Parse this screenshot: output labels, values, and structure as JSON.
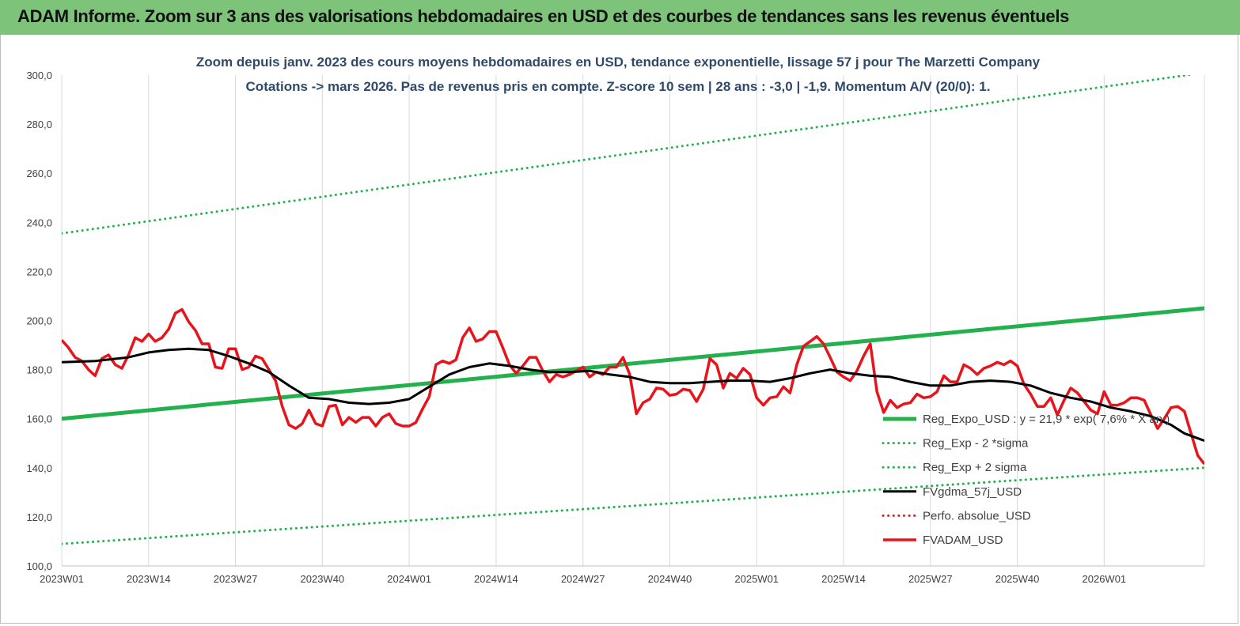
{
  "banner": {
    "title": "ADAM Informe. Zoom sur 3 ans des valorisations hebdomadaires en USD et des courbes de tendances sans les revenus éventuels"
  },
  "colors": {
    "banner_bg": "#7dc47a",
    "trend": "#22b14c",
    "bands": "#22b14c",
    "smooth": "#000000",
    "price": "#e8141b",
    "perf": "#e8141b",
    "grid": "#d9d9d9",
    "title_text": "#2e4a6b"
  },
  "chart_data": {
    "type": "line",
    "title": "Zoom depuis janv. 2023 des cours moyens hebdomadaires en USD, tendance exponentielle, lissage 57 j pour The Marzetti Company",
    "subtitle": "Cotations -> mars 2026. Pas de revenus pris en compte. Z-score 10 sem  | 28 ans : -3,0 | -1,9. Momentum A/V (20/0): 1.",
    "ylim": [
      100,
      300
    ],
    "y_ticks": [
      "300,0",
      "280,0",
      "260,0",
      "240,0",
      "220,0",
      "200,0",
      "180,0",
      "160,0",
      "140,0",
      "120,0",
      "100,0"
    ],
    "x_ticks": [
      "2023W01",
      "2023W14",
      "2023W27",
      "2023W40",
      "2024W01",
      "2024W14",
      "2024W27",
      "2024W40",
      "2025W01",
      "2025W14",
      "2025W27",
      "2025W40",
      "2026W01"
    ],
    "grid": "vertical",
    "legend_position": "right",
    "series": [
      {
        "name": "Reg_Expo_USD : y = 21,9 * exp( 7,6% * X an )",
        "style": "solid-thick",
        "color": "#22b14c",
        "x": [
          0,
          171
        ],
        "values": [
          160,
          205
        ]
      },
      {
        "name": "Reg_Exp - 2 *sigma",
        "style": "dotted",
        "color": "#22b14c",
        "x": [
          0,
          171
        ],
        "values": [
          109,
          140
        ]
      },
      {
        "name": "Reg_Exp + 2 sigma",
        "style": "dotted",
        "color": "#22b14c",
        "x": [
          0,
          171
        ],
        "values": [
          235.5,
          301
        ]
      },
      {
        "name": "FVgdma_57j_USD",
        "style": "solid",
        "color": "#000000",
        "x": [
          0,
          5,
          10,
          13,
          16,
          19,
          22,
          25,
          28,
          31,
          34,
          37,
          40,
          43,
          46,
          49,
          52,
          55,
          58,
          61,
          64,
          67,
          70,
          73,
          76,
          79,
          82,
          85,
          88,
          91,
          94,
          97,
          100,
          103,
          106,
          109,
          112,
          115,
          118,
          121,
          124,
          127,
          130,
          133,
          136,
          139,
          142,
          145,
          148,
          151,
          154,
          157,
          160,
          163,
          166,
          168,
          171
        ],
        "values": [
          183,
          183.5,
          185,
          187,
          188,
          188.5,
          188,
          185.5,
          182.5,
          179,
          173.5,
          168.5,
          168,
          166.5,
          166,
          166.5,
          168,
          173,
          178,
          181,
          182.5,
          181.5,
          180,
          179,
          179,
          179.5,
          178,
          177,
          175,
          174.5,
          174.5,
          175,
          175.5,
          175.5,
          175,
          176.5,
          178.5,
          180,
          178.5,
          177.5,
          177,
          175,
          173.5,
          173.5,
          175,
          175.5,
          175,
          173.5,
          170.5,
          168.5,
          167,
          164.5,
          163,
          161,
          157.5,
          154,
          151
        ]
      },
      {
        "name": "Perfo. absolue_USD",
        "style": "dotted",
        "color": "#e8141b",
        "x": [],
        "values": []
      },
      {
        "name": "FVADAM_USD",
        "style": "solid-thick",
        "color": "#e8141b",
        "x": [
          0,
          1,
          2,
          3,
          4,
          5,
          6,
          7,
          8,
          9,
          10,
          11,
          12,
          13,
          14,
          15,
          16,
          17,
          18,
          19,
          20,
          21,
          22,
          23,
          24,
          25,
          26,
          27,
          28,
          29,
          30,
          31,
          32,
          33,
          34,
          35,
          36,
          37,
          38,
          39,
          40,
          41,
          42,
          43,
          44,
          45,
          46,
          47,
          48,
          49,
          50,
          51,
          52,
          53,
          54,
          55,
          56,
          57,
          58,
          59,
          60,
          61,
          62,
          63,
          64,
          65,
          66,
          67,
          68,
          69,
          70,
          71,
          72,
          73,
          74,
          75,
          76,
          77,
          78,
          79,
          80,
          81,
          82,
          83,
          84,
          85,
          86,
          87,
          88,
          89,
          90,
          91,
          92,
          93,
          94,
          95,
          96,
          97,
          98,
          99,
          100,
          101,
          102,
          103,
          104,
          105,
          106,
          107,
          108,
          109,
          110,
          111,
          112,
          113,
          114,
          115,
          116,
          117,
          118,
          119,
          120,
          121,
          122,
          123,
          124,
          125,
          126,
          127,
          128,
          129,
          130,
          131,
          132,
          133,
          134,
          135,
          136,
          137,
          138,
          139,
          140,
          141,
          142,
          143,
          144,
          145,
          146,
          147,
          148,
          149,
          150,
          151,
          152,
          153,
          154,
          155,
          156,
          157,
          158,
          159,
          160,
          161,
          162,
          163,
          164,
          165,
          166,
          167,
          168,
          169,
          170,
          171
        ],
        "values": [
          192,
          189,
          185,
          183.5,
          180,
          177.5,
          184.5,
          186,
          182,
          180.5,
          186,
          193,
          191.5,
          194.5,
          191.5,
          193,
          196.5,
          203,
          204.5,
          199.5,
          196,
          190.5,
          190.5,
          181,
          180.5,
          188.5,
          188.5,
          180,
          181,
          185.5,
          184.5,
          180,
          175.5,
          165,
          157.5,
          156,
          158,
          163.5,
          158,
          157,
          165,
          165.5,
          157.5,
          160.5,
          158.5,
          160.5,
          160.5,
          157,
          160.5,
          162,
          158,
          157,
          157,
          158.5,
          164,
          169,
          182,
          183.5,
          182.5,
          184,
          193,
          197,
          191.5,
          192.5,
          195.5,
          195.5,
          189,
          182,
          178.5,
          181.5,
          185,
          185,
          179.5,
          175,
          178,
          177,
          178,
          179.5,
          181,
          177,
          179,
          178,
          181,
          181,
          185,
          178,
          162,
          166.5,
          168,
          172.5,
          172,
          169.5,
          170,
          172,
          171.5,
          167,
          172,
          184.5,
          182,
          172.5,
          178.5,
          176.5,
          180.5,
          178,
          168.5,
          165.5,
          168.5,
          169,
          173,
          170.5,
          182,
          189.5,
          191.5,
          193.5,
          190.5,
          185,
          179,
          177,
          175.5,
          179.5,
          185.5,
          190.5,
          171,
          162.5,
          167.5,
          164.5,
          166,
          166.5,
          170,
          168.5,
          169,
          171,
          177.5,
          175,
          175,
          182,
          180.5,
          178,
          180.5,
          181.5,
          183,
          182,
          183.5,
          181.5,
          174,
          170,
          165,
          165,
          168.5,
          161.5,
          167.5,
          172.5,
          170.5,
          167,
          163.5,
          162,
          171,
          165.5,
          165.5,
          166.5,
          168.5,
          168.5,
          167.5,
          161.5,
          156,
          160,
          164.5,
          165,
          163,
          154,
          145,
          141.5
        ]
      }
    ]
  }
}
